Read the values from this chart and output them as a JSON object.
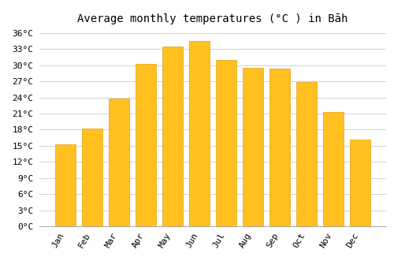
{
  "title": "Average monthly temperatures (°C ) in Bāh",
  "months": [
    "Jan",
    "Feb",
    "Mar",
    "Apr",
    "May",
    "Jun",
    "Jul",
    "Aug",
    "Sep",
    "Oct",
    "Nov",
    "Dec"
  ],
  "values": [
    15.2,
    18.2,
    23.8,
    30.2,
    33.5,
    34.5,
    31.0,
    29.5,
    29.3,
    26.8,
    21.3,
    16.2
  ],
  "bar_color": "#FFC020",
  "bar_edge_color": "#E8A010",
  "background_color": "#ffffff",
  "grid_color": "#cccccc",
  "ylim": [
    0,
    37
  ],
  "yticks": [
    0,
    3,
    6,
    9,
    12,
    15,
    18,
    21,
    24,
    27,
    30,
    33,
    36
  ],
  "title_fontsize": 10,
  "tick_fontsize": 8,
  "font_family": "monospace",
  "bar_width": 0.75
}
